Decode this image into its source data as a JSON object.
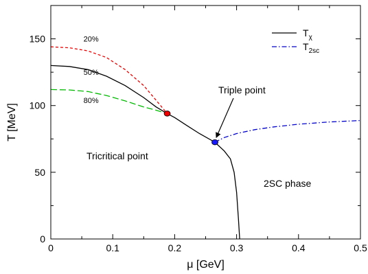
{
  "chart_data": {
    "type": "line",
    "xlabel": "μ [GeV]",
    "ylabel": "T [MeV]",
    "xlim": [
      0,
      0.5
    ],
    "ylim": [
      0,
      175
    ],
    "xticks": [
      0,
      0.1,
      0.2,
      0.3,
      0.4,
      0.5
    ],
    "yticks": [
      0,
      50,
      100,
      150
    ],
    "xtick_labels": [
      "0",
      "0.1",
      "0.2",
      "0.3",
      "0.4",
      "0.5"
    ],
    "ytick_labels": [
      "0",
      "50",
      "100",
      "150"
    ],
    "legend": {
      "placement": "top-right",
      "entries": [
        {
          "name": "T",
          "subscript": "χ",
          "series_style": "solid",
          "color": "#000000"
        },
        {
          "name": "T",
          "subscript": "2sc",
          "series_style": "dashdot",
          "color": "#0000cc"
        }
      ]
    },
    "series": [
      {
        "id": "tchi",
        "style": "solid",
        "color": "#000000",
        "points": [
          [
            0,
            130
          ],
          [
            0.03,
            129.3
          ],
          [
            0.06,
            127
          ],
          [
            0.09,
            122
          ],
          [
            0.12,
            115
          ],
          [
            0.15,
            106
          ],
          [
            0.17,
            99
          ],
          [
            0.188,
            94
          ],
          [
            0.2,
            91
          ],
          [
            0.22,
            85
          ],
          [
            0.24,
            79
          ],
          [
            0.265,
            72.5
          ],
          [
            0.28,
            66
          ],
          [
            0.29,
            60
          ],
          [
            0.296,
            50
          ],
          [
            0.3,
            35
          ],
          [
            0.303,
            15
          ],
          [
            0.305,
            0
          ]
        ]
      },
      {
        "id": "t2sc",
        "style": "dashdot",
        "color": "#0000cc",
        "points": [
          [
            0.265,
            72.5
          ],
          [
            0.28,
            76
          ],
          [
            0.3,
            79
          ],
          [
            0.33,
            82
          ],
          [
            0.36,
            84
          ],
          [
            0.4,
            86
          ],
          [
            0.45,
            87.7
          ],
          [
            0.5,
            88.8
          ]
        ]
      },
      {
        "id": "p20",
        "label": "20%",
        "style": "dashed",
        "color": "#ee0000",
        "points": [
          [
            0,
            144
          ],
          [
            0.03,
            143.3
          ],
          [
            0.06,
            141
          ],
          [
            0.09,
            136
          ],
          [
            0.12,
            127
          ],
          [
            0.15,
            115
          ],
          [
            0.17,
            104
          ],
          [
            0.188,
            94
          ]
        ]
      },
      {
        "id": "p80",
        "label": "80%",
        "style": "longdash",
        "color": "#00bb00",
        "points": [
          [
            0,
            112
          ],
          [
            0.03,
            111.7
          ],
          [
            0.06,
            110.5
          ],
          [
            0.09,
            107.5
          ],
          [
            0.12,
            103.5
          ],
          [
            0.15,
            99
          ],
          [
            0.17,
            96.5
          ],
          [
            0.188,
            94
          ]
        ]
      }
    ],
    "curve_labels": [
      {
        "text": "20%",
        "x": 0.065,
        "y": 150
      },
      {
        "text": "50%",
        "x": 0.065,
        "y": 125
      },
      {
        "text": "80%",
        "x": 0.065,
        "y": 104
      }
    ],
    "markers": [
      {
        "name": "tricritical",
        "x": 0.188,
        "y": 94,
        "color": "#ee0000"
      },
      {
        "name": "triple",
        "x": 0.265,
        "y": 72.5,
        "color": "#1a1aff"
      }
    ],
    "annotations": [
      {
        "id": "triple",
        "text": "Triple point"
      },
      {
        "id": "tricritical",
        "text": "Tricritical point"
      },
      {
        "id": "phase",
        "text": "2SC phase"
      }
    ]
  }
}
